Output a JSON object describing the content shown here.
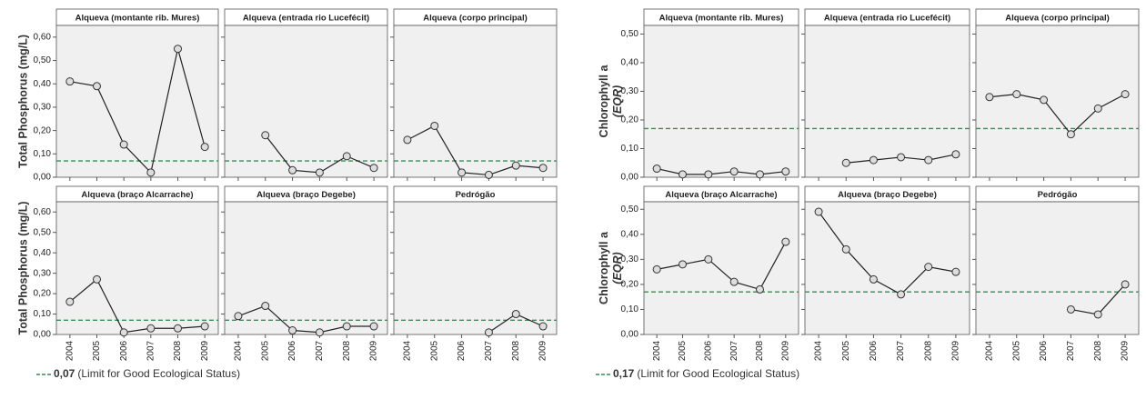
{
  "chart_data": [
    {
      "type": "line",
      "ylabel": [
        "Total Phosphorus (mg/L)"
      ],
      "x": [
        2004,
        2005,
        2006,
        2007,
        2008,
        2009
      ],
      "xlim": [
        2003.5,
        2009.5
      ],
      "ylim": [
        0,
        0.65
      ],
      "yticks": [
        {
          "value": 0,
          "label": "0,00"
        },
        {
          "value": 0.1,
          "label": "0,10"
        },
        {
          "value": 0.2,
          "label": "0,20"
        },
        {
          "value": 0.3,
          "label": "0,30"
        },
        {
          "value": 0.4,
          "label": "0,40"
        },
        {
          "value": 0.5,
          "label": "0,50"
        },
        {
          "value": 0.6,
          "label": "0,60"
        }
      ],
      "threshold": {
        "value": 0.07,
        "label": "0,07"
      },
      "threshold_color": "#3a8a5a",
      "note": "(Limit for Good Ecological Status)",
      "panels": [
        {
          "title": "Alqueva (montante rib. Mures)",
          "values": [
            0.41,
            0.39,
            0.14,
            0.02,
            0.55,
            0.13
          ]
        },
        {
          "title": "Alqueva (entrada rio Lucefécit)",
          "values": [
            null,
            0.18,
            0.03,
            0.02,
            0.09,
            0.04
          ]
        },
        {
          "title": "Alqueva (corpo principal)",
          "values": [
            0.16,
            0.22,
            0.02,
            0.01,
            0.05,
            0.04
          ]
        },
        {
          "title": "Alqueva (braço Alcarrache)",
          "values": [
            0.16,
            0.27,
            0.01,
            0.03,
            0.03,
            0.04
          ]
        },
        {
          "title": "Alqueva (braço Degebe)",
          "values": [
            0.09,
            0.14,
            0.02,
            0.01,
            0.04,
            0.04
          ]
        },
        {
          "title": "Pedrógão",
          "values": [
            null,
            null,
            null,
            0.01,
            0.1,
            0.04
          ]
        }
      ]
    },
    {
      "type": "line",
      "ylabel": [
        "Chlorophyll a",
        "(EQR)"
      ],
      "x": [
        2004,
        2005,
        2006,
        2007,
        2008,
        2009
      ],
      "xlim": [
        2003.5,
        2009.5
      ],
      "ylim": [
        0,
        0.53
      ],
      "yticks": [
        {
          "value": 0,
          "label": "0,00"
        },
        {
          "value": 0.1,
          "label": "0,10"
        },
        {
          "value": 0.2,
          "label": "0,20"
        },
        {
          "value": 0.3,
          "label": "0,30"
        },
        {
          "value": 0.4,
          "label": "0,40"
        },
        {
          "value": 0.5,
          "label": "0,50"
        }
      ],
      "threshold": {
        "value": 0.17,
        "label": "0,17"
      },
      "threshold_color": "#3a8a5a",
      "note": "(Limit for Good Ecological Status)",
      "panels": [
        {
          "title": "Alqueva (montante rib. Mures)",
          "values": [
            0.03,
            0.01,
            0.01,
            0.02,
            0.01,
            0.02
          ]
        },
        {
          "title": "Alqueva (entrada rio Lucefécit)",
          "values": [
            null,
            0.05,
            0.06,
            0.07,
            0.06,
            0.08
          ]
        },
        {
          "title": "Alqueva (corpo principal)",
          "values": [
            0.28,
            0.29,
            0.27,
            0.15,
            0.24,
            0.29
          ]
        },
        {
          "title": "Alqueva (braço Alcarrache)",
          "values": [
            0.26,
            0.28,
            0.3,
            0.21,
            0.18,
            0.37
          ]
        },
        {
          "title": "Alqueva (braço Degebe)",
          "values": [
            0.49,
            0.34,
            0.22,
            0.16,
            0.27,
            0.25
          ]
        },
        {
          "title": "Pedrógão",
          "values": [
            null,
            null,
            null,
            0.1,
            0.08,
            0.2
          ]
        }
      ]
    }
  ]
}
